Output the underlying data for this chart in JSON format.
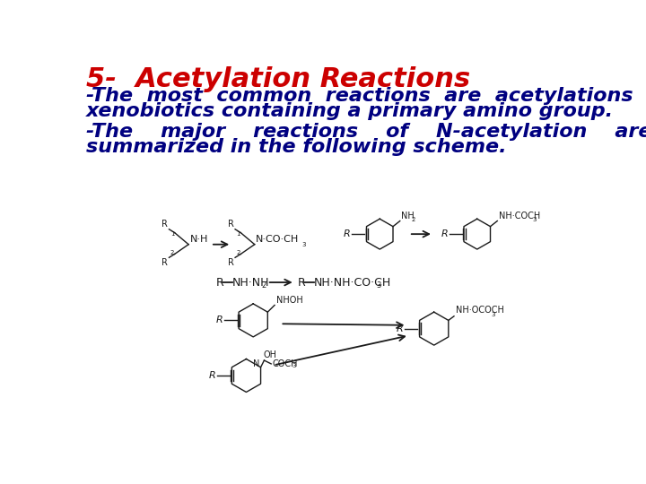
{
  "title": "5-  Acetylation Reactions",
  "title_color": "#cc0000",
  "title_fontsize": 22,
  "line1a": "-The  most  common  reactions  are  acetylations  of",
  "line1b": "xenobiotics containing a primary amino group.",
  "line2a": "-The    major    reactions    of    N-acetylation    are",
  "line2b": "summarized in the following scheme.",
  "text_color": "#000080",
  "text_fontsize": 16,
  "bg_color": "#ffffff",
  "chem_color": "#1a1a1a"
}
